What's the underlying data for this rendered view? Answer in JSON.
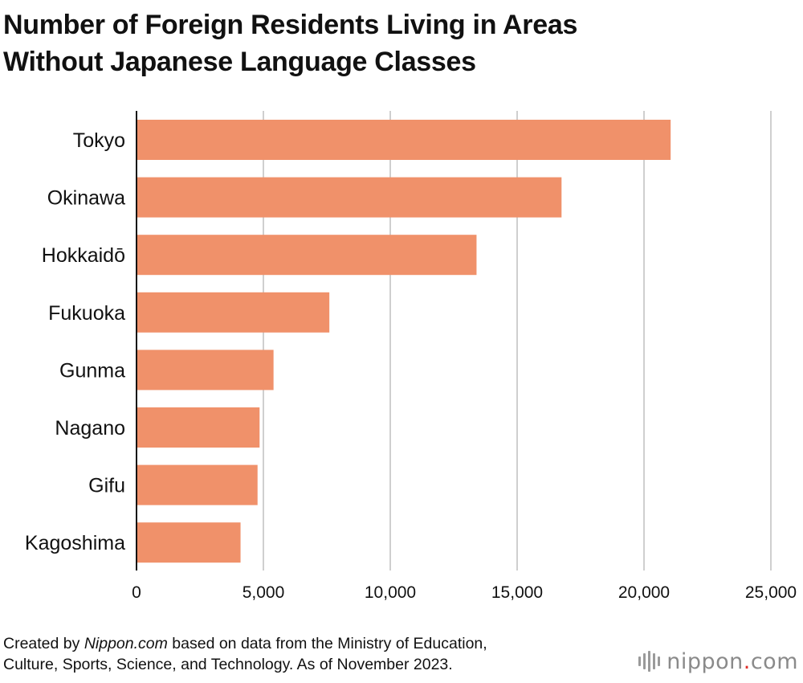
{
  "title_lines": [
    "Number of Foreign Residents Living in Areas",
    "Without Japanese Language Classes"
  ],
  "footer": {
    "line1_prefix": "Created by ",
    "line1_source": "Nippon.com",
    "line1_suffix": " based on data from the Ministry of Education,",
    "line2": "Culture, Sports, Science, and Technology. As of November 2023."
  },
  "logo": {
    "text_before": "nippon",
    "dot": ".",
    "text_after": "com",
    "dot_color": "#e0302a"
  },
  "colors": {
    "bar": "#f0916a",
    "grid": "#cfcfcf",
    "axis": "#111111"
  },
  "chart_data": {
    "type": "bar",
    "orientation": "horizontal",
    "title": "Number of Foreign Residents Living in Areas Without Japanese Language Classes",
    "categories": [
      "Tokyo",
      "Okinawa",
      "Hokkaidō",
      "Fukuoka",
      "Gunma",
      "Nagano",
      "Gifu",
      "Kagoshima"
    ],
    "values": [
      21050,
      16750,
      13400,
      7600,
      5400,
      4850,
      4770,
      4100
    ],
    "xlim": [
      0,
      25000
    ],
    "xticks": [
      0,
      5000,
      10000,
      15000,
      20000,
      25000
    ],
    "xtick_labels": [
      "0",
      "5,000",
      "10,000",
      "15,000",
      "20,000",
      "25,000"
    ],
    "grid": true,
    "legend": "none"
  }
}
